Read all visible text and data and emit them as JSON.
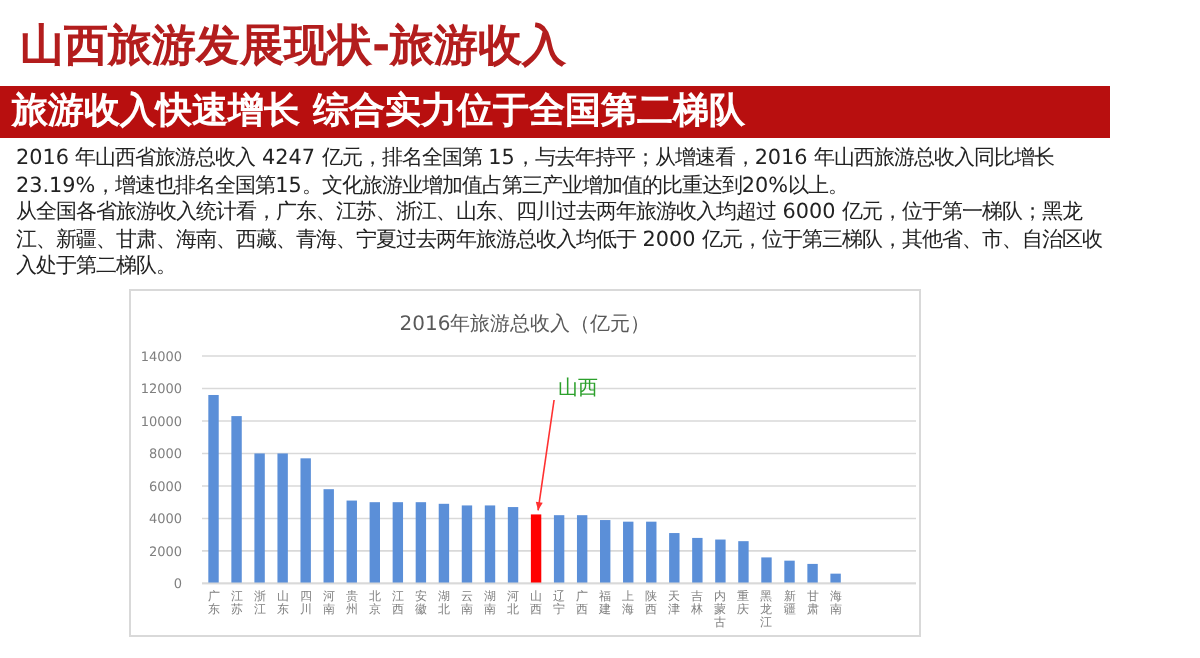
{
  "chart_data": {
    "type": "bar",
    "title": "2016年旅游总收入（亿元）",
    "categories": [
      "广东",
      "江苏",
      "浙江",
      "山东",
      "四川",
      "河南",
      "贵州",
      "北京",
      "江西",
      "安徽",
      "湖北",
      "云南",
      "湖南",
      "河北",
      "山西",
      "辽宁",
      "广西",
      "福建",
      "上海",
      "陕西",
      "天津",
      "吉林",
      "内蒙古",
      "重庆",
      "黑龙江",
      "新疆",
      "甘肃",
      "海南"
    ],
    "values": [
      11600,
      10300,
      8000,
      8000,
      7700,
      5800,
      5100,
      5000,
      5000,
      5000,
      4900,
      4800,
      4800,
      4700,
      4247,
      4200,
      4200,
      3900,
      3800,
      3800,
      3100,
      2800,
      2700,
      2600,
      1600,
      1400,
      1200,
      600
    ],
    "colors": [
      "#5b8fd8",
      "#5b8fd8",
      "#5b8fd8",
      "#5b8fd8",
      "#5b8fd8",
      "#5b8fd8",
      "#5b8fd8",
      "#5b8fd8",
      "#5b8fd8",
      "#5b8fd8",
      "#5b8fd8",
      "#5b8fd8",
      "#5b8fd8",
      "#5b8fd8",
      "#ff0000",
      "#5b8fd8",
      "#5b8fd8",
      "#5b8fd8",
      "#5b8fd8",
      "#5b8fd8",
      "#5b8fd8",
      "#5b8fd8",
      "#5b8fd8",
      "#5b8fd8",
      "#5b8fd8",
      "#5b8fd8",
      "#5b8fd8",
      "#5b8fd8"
    ],
    "ylim": [
      0,
      14000
    ],
    "yticks": [
      0,
      2000,
      4000,
      6000,
      8000,
      10000,
      12000,
      14000
    ],
    "grid": "y",
    "annotations": [
      "山西旅游发展现状-旅游收入",
      "旅游收入快速增长 综合实力位于全国第二梯队",
      "2016 年山西省旅游总收入 4247 亿元，排名全国第 15，与去年持平；从增速看，2016 年山西旅游总收入同比增长 23.19%，增速也排名全国第15。文化旅游业增加值占第三产业增加值的比重达到20%以上。",
      "从全国各省旅游收入统计看，广东、江苏、浙江、山东、四川过去两年旅游收入均超过 6000 亿元，位于第一梯队；黑龙江、新疆、甘肃、海南、西藏、青海、宁夏过去两年旅游总收入均低于 2000 亿元，位于第三梯队，其他省、市、自治区收入处于第二梯队。",
      {
        "text": "山西",
        "x": "山西",
        "y": 4247
      }
    ]
  }
}
